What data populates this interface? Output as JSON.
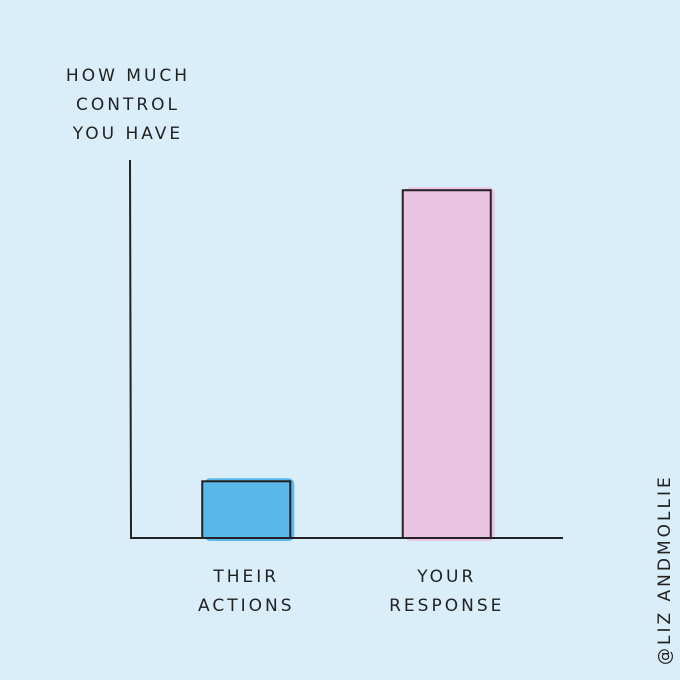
{
  "chart_data": {
    "type": "bar",
    "ylabel": "HOW MUCH CONTROL YOU HAVE",
    "categories": [
      "THEIR ACTIONS",
      "YOUR RESPONSE"
    ],
    "values": [
      15,
      92
    ],
    "colors": [
      "#5bb8ea",
      "#ebc3e3"
    ],
    "ylim": [
      0,
      100
    ],
    "credit": "@LIZ ANDMOLLIE"
  }
}
